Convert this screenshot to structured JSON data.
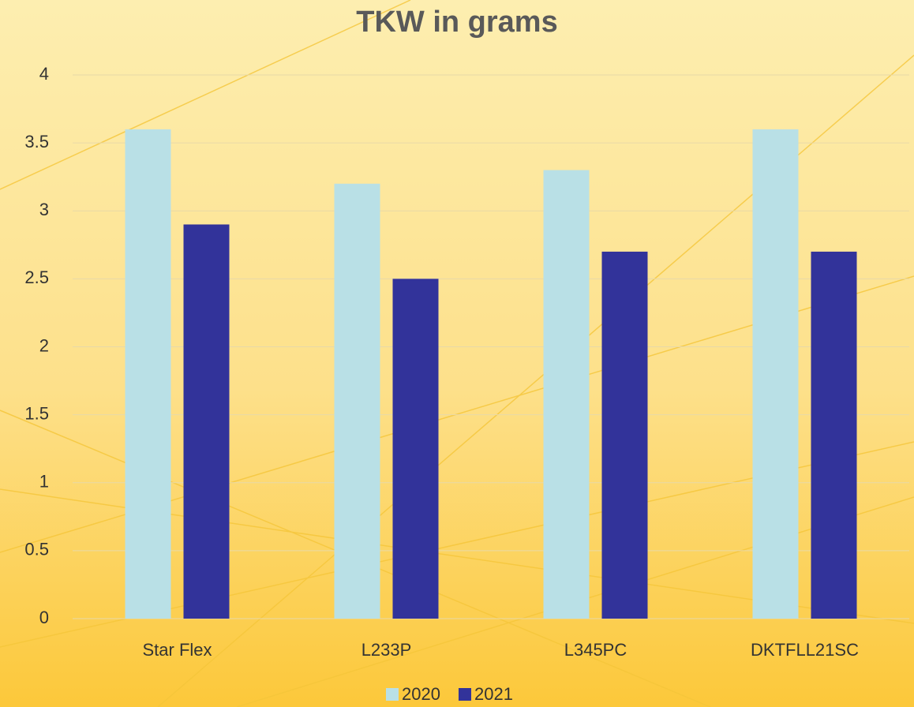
{
  "chart_data": {
    "type": "bar",
    "title": "TKW in grams",
    "categories": [
      "Star Flex",
      "L233P",
      "L345PC",
      "DKTFLL21SC"
    ],
    "series": [
      {
        "name": "2020",
        "color": "#b9e0e6",
        "values": [
          3.6,
          3.2,
          3.3,
          3.6
        ]
      },
      {
        "name": "2021",
        "color": "#32339a",
        "values": [
          2.9,
          2.5,
          2.7,
          2.7
        ]
      }
    ],
    "ylim": [
      0,
      4
    ],
    "yticks": [
      0,
      0.5,
      1,
      1.5,
      2,
      2.5,
      3,
      3.5,
      4
    ],
    "grid": true,
    "legend": "bottom"
  }
}
